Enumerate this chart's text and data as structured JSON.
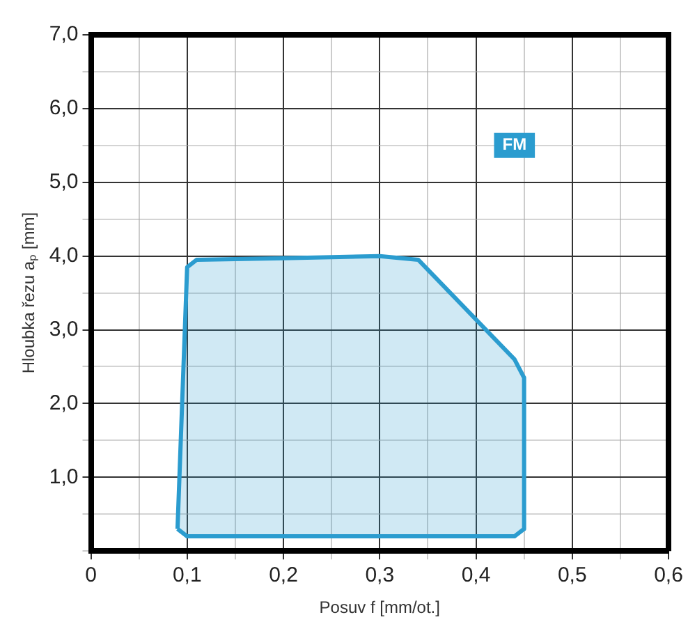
{
  "chart_data": {
    "type": "area",
    "xlabel": "Posuv f [mm/ot.]",
    "ylabel": "Hloubka řezu aₚ [mm]",
    "series": [
      {
        "color": "#2b9ccf",
        "x": [
          0.09,
          0.1,
          0.11,
          0.2,
          0.3,
          0.34,
          0.44,
          0.45,
          0.45,
          0.44,
          0.1,
          0.09,
          0.09
        ],
        "values": [
          0.3,
          3.85,
          3.95,
          3.97,
          4.0,
          3.95,
          2.6,
          2.35,
          0.3,
          0.2,
          0.2,
          0.3,
          0.3
        ]
      }
    ],
    "xlim": [
      0,
      0.6
    ],
    "ylim": [
      0,
      7
    ],
    "xticks": [
      {
        "value": 0,
        "label": "0"
      },
      {
        "value": 0.05,
        "label": null
      },
      {
        "value": 0.1,
        "label": "0,1"
      },
      {
        "value": 0.15,
        "label": null
      },
      {
        "value": 0.2,
        "label": "0,2"
      },
      {
        "value": 0.25,
        "label": null
      },
      {
        "value": 0.3,
        "label": "0,3"
      },
      {
        "value": 0.35,
        "label": null
      },
      {
        "value": 0.4,
        "label": "0,4"
      },
      {
        "value": 0.45,
        "label": null
      },
      {
        "value": 0.5,
        "label": "0,5"
      },
      {
        "value": 0.55,
        "label": null
      },
      {
        "value": 0.6,
        "label": "0,6"
      }
    ],
    "yticks": [
      {
        "value": 0,
        "label": null
      },
      {
        "value": 0.5,
        "label": null
      },
      {
        "value": 1,
        "label": "1,0"
      },
      {
        "value": 1.5,
        "label": null
      },
      {
        "value": 2,
        "label": "2,0"
      },
      {
        "value": 2.5,
        "label": null
      },
      {
        "value": 3,
        "label": "3,0"
      },
      {
        "value": 3.5,
        "label": null
      },
      {
        "value": 4,
        "label": "4,0"
      },
      {
        "value": 4.5,
        "label": null
      },
      {
        "value": 5,
        "label": "5,0"
      },
      {
        "value": 5.5,
        "label": null
      },
      {
        "value": 6,
        "label": "6,0"
      },
      {
        "value": 6.5,
        "label": null
      },
      {
        "value": 7,
        "label": "7,0"
      }
    ],
    "annotations": [
      {
        "text": "FM",
        "x": 0.44,
        "y": 5.5
      }
    ],
    "grid": true,
    "legend": false,
    "marker": "none",
    "line_style": "solid"
  }
}
